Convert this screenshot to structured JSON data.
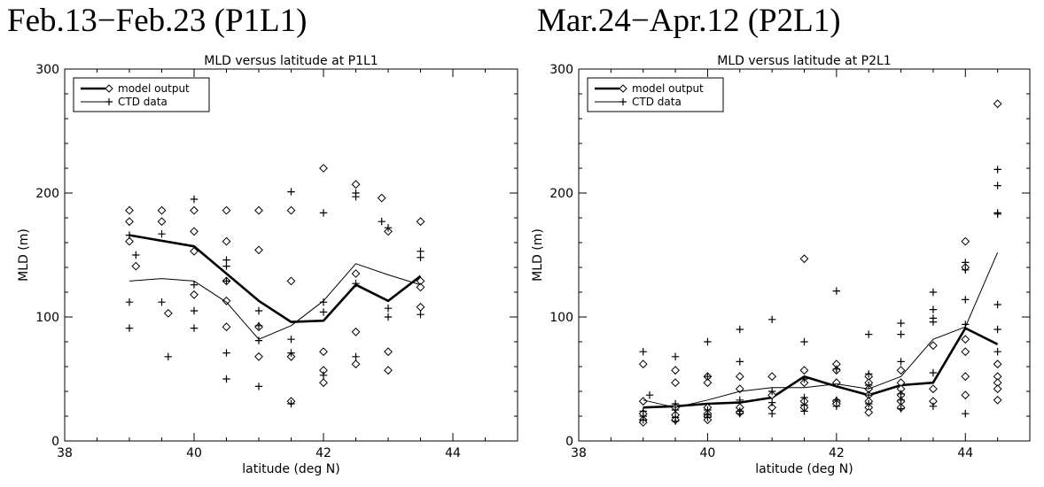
{
  "chart_data": [
    {
      "type": "scatter",
      "header": "Feb.13−Feb.23 (P1L1)",
      "title": "MLD versus latitude at P1L1",
      "xlabel": "latitude (deg N)",
      "ylabel": "MLD (m)",
      "xlim": [
        38,
        45
      ],
      "ylim": [
        0,
        300
      ],
      "xticks": [
        38,
        40,
        42,
        44
      ],
      "yticks": [
        0,
        100,
        200,
        300
      ],
      "grid": false,
      "legend_position": "top-left",
      "series": [
        {
          "name": "model output",
          "kind": "line",
          "marker": "diamond",
          "line_weight": "thick",
          "line": [
            [
              39.0,
              166
            ],
            [
              40.0,
              157
            ],
            [
              41.0,
              113
            ],
            [
              41.5,
              96
            ],
            [
              42.0,
              97
            ],
            [
              42.5,
              126
            ],
            [
              43.0,
              113
            ],
            [
              43.5,
              133
            ]
          ],
          "points": [
            [
              39.0,
              186
            ],
            [
              39.0,
              177
            ],
            [
              39.0,
              161
            ],
            [
              39.1,
              141
            ],
            [
              39.5,
              186
            ],
            [
              39.5,
              177
            ],
            [
              39.6,
              103
            ],
            [
              40.0,
              186
            ],
            [
              40.0,
              169
            ],
            [
              40.0,
              153
            ],
            [
              40.0,
              118
            ],
            [
              40.5,
              186
            ],
            [
              40.5,
              161
            ],
            [
              40.5,
              129
            ],
            [
              40.5,
              113
            ],
            [
              40.5,
              92
            ],
            [
              41.0,
              186
            ],
            [
              41.0,
              154
            ],
            [
              41.0,
              92
            ],
            [
              41.0,
              68
            ],
            [
              41.5,
              186
            ],
            [
              41.5,
              129
            ],
            [
              41.5,
              68
            ],
            [
              41.5,
              32
            ],
            [
              42.0,
              220
            ],
            [
              42.0,
              72
            ],
            [
              42.0,
              57
            ],
            [
              42.0,
              47
            ],
            [
              42.5,
              207
            ],
            [
              42.5,
              135
            ],
            [
              42.5,
              88
            ],
            [
              42.5,
              62
            ],
            [
              42.9,
              196
            ],
            [
              43.0,
              169
            ],
            [
              43.0,
              72
            ],
            [
              43.0,
              57
            ],
            [
              43.5,
              177
            ],
            [
              43.5,
              129
            ],
            [
              43.5,
              124
            ],
            [
              43.5,
              108
            ]
          ]
        },
        {
          "name": "CTD data",
          "kind": "line",
          "marker": "plus",
          "line_weight": "thin",
          "line": [
            [
              39.0,
              129
            ],
            [
              39.5,
              131
            ],
            [
              40.0,
              129
            ],
            [
              40.5,
              112
            ],
            [
              41.0,
              82
            ],
            [
              41.5,
              93
            ],
            [
              42.0,
              113
            ],
            [
              42.5,
              143
            ],
            [
              43.0,
              134
            ],
            [
              43.5,
              126
            ]
          ],
          "points": [
            [
              39.0,
              166
            ],
            [
              39.1,
              150
            ],
            [
              39.0,
              112
            ],
            [
              39.0,
              91
            ],
            [
              39.5,
              167
            ],
            [
              39.5,
              112
            ],
            [
              39.6,
              68
            ],
            [
              40.0,
              195
            ],
            [
              40.0,
              126
            ],
            [
              40.0,
              105
            ],
            [
              40.0,
              91
            ],
            [
              40.5,
              146
            ],
            [
              40.5,
              141
            ],
            [
              40.5,
              129
            ],
            [
              40.5,
              71
            ],
            [
              40.5,
              50
            ],
            [
              41.0,
              105
            ],
            [
              41.0,
              93
            ],
            [
              41.0,
              81
            ],
            [
              41.0,
              44
            ],
            [
              41.5,
              201
            ],
            [
              41.5,
              82
            ],
            [
              41.5,
              71
            ],
            [
              41.5,
              30
            ],
            [
              42.0,
              184
            ],
            [
              42.0,
              112
            ],
            [
              42.0,
              104
            ],
            [
              42.0,
              53
            ],
            [
              42.5,
              200
            ],
            [
              42.5,
              197
            ],
            [
              42.5,
              127
            ],
            [
              42.5,
              68
            ],
            [
              42.9,
              177
            ],
            [
              43.0,
              172
            ],
            [
              43.0,
              107
            ],
            [
              43.0,
              100
            ],
            [
              43.5,
              153
            ],
            [
              43.5,
              148
            ],
            [
              43.5,
              102
            ]
          ]
        }
      ]
    },
    {
      "type": "scatter",
      "header": "Mar.24−Apr.12 (P2L1)",
      "title": "MLD versus latitude at P2L1",
      "xlabel": "latitude (deg N)",
      "ylabel": "MLD (m)",
      "xlim": [
        38,
        45
      ],
      "ylim": [
        0,
        300
      ],
      "xticks": [
        38,
        40,
        42,
        44
      ],
      "yticks": [
        0,
        100,
        200,
        300
      ],
      "grid": false,
      "legend_position": "top-left",
      "series": [
        {
          "name": "model output",
          "kind": "line",
          "marker": "diamond",
          "line_weight": "thick",
          "line": [
            [
              39.0,
              27
            ],
            [
              39.5,
              28
            ],
            [
              40.0,
              30
            ],
            [
              40.5,
              31
            ],
            [
              41.0,
              35
            ],
            [
              41.5,
              52
            ],
            [
              42.0,
              44
            ],
            [
              42.5,
              37
            ],
            [
              43.0,
              45
            ],
            [
              43.5,
              47
            ],
            [
              44.0,
              91
            ],
            [
              44.5,
              78
            ]
          ],
          "points": [
            [
              39.0,
              62
            ],
            [
              39.0,
              32
            ],
            [
              39.0,
              22
            ],
            [
              39.0,
              17
            ],
            [
              39.0,
              15
            ],
            [
              39.5,
              57
            ],
            [
              39.5,
              47
            ],
            [
              39.5,
              27
            ],
            [
              39.5,
              21
            ],
            [
              39.5,
              17
            ],
            [
              40.0,
              52
            ],
            [
              40.0,
              47
            ],
            [
              40.0,
              27
            ],
            [
              40.0,
              22
            ],
            [
              40.0,
              20
            ],
            [
              40.0,
              17
            ],
            [
              40.5,
              52
            ],
            [
              40.5,
              42
            ],
            [
              40.5,
              27
            ],
            [
              40.5,
              23
            ],
            [
              41.0,
              52
            ],
            [
              41.0,
              37
            ],
            [
              41.0,
              27
            ],
            [
              41.5,
              147
            ],
            [
              41.5,
              57
            ],
            [
              41.5,
              47
            ],
            [
              41.5,
              32
            ],
            [
              41.5,
              27
            ],
            [
              42.0,
              62
            ],
            [
              42.0,
              57
            ],
            [
              42.0,
              47
            ],
            [
              42.0,
              32
            ],
            [
              42.0,
              30
            ],
            [
              42.5,
              52
            ],
            [
              42.5,
              47
            ],
            [
              42.5,
              42
            ],
            [
              42.5,
              37
            ],
            [
              42.5,
              32
            ],
            [
              42.5,
              27
            ],
            [
              42.5,
              23
            ],
            [
              43.0,
              57
            ],
            [
              43.0,
              47
            ],
            [
              43.0,
              42
            ],
            [
              43.0,
              37
            ],
            [
              43.0,
              32
            ],
            [
              43.0,
              27
            ],
            [
              43.5,
              77
            ],
            [
              43.5,
              42
            ],
            [
              43.5,
              32
            ],
            [
              44.0,
              161
            ],
            [
              44.0,
              140
            ],
            [
              44.0,
              82
            ],
            [
              44.0,
              72
            ],
            [
              44.0,
              52
            ],
            [
              44.0,
              37
            ],
            [
              44.5,
              272
            ],
            [
              44.5,
              62
            ],
            [
              44.5,
              52
            ],
            [
              44.5,
              47
            ],
            [
              44.5,
              42
            ],
            [
              44.5,
              33
            ]
          ]
        },
        {
          "name": "CTD data",
          "kind": "line",
          "marker": "plus",
          "line_weight": "thin",
          "line": [
            [
              39.0,
              33
            ],
            [
              39.5,
              27
            ],
            [
              40.0,
              33
            ],
            [
              40.5,
              40
            ],
            [
              41.0,
              43
            ],
            [
              41.5,
              43
            ],
            [
              42.0,
              46
            ],
            [
              42.5,
              42
            ],
            [
              43.0,
              52
            ],
            [
              43.5,
              82
            ],
            [
              44.0,
              92
            ],
            [
              44.5,
              152
            ]
          ],
          "points": [
            [
              39.0,
              72
            ],
            [
              39.1,
              37
            ],
            [
              39.0,
              24
            ],
            [
              39.0,
              20
            ],
            [
              39.0,
              17
            ],
            [
              39.5,
              68
            ],
            [
              39.5,
              30
            ],
            [
              39.5,
              25
            ],
            [
              39.5,
              19
            ],
            [
              39.5,
              16
            ],
            [
              40.0,
              80
            ],
            [
              40.0,
              52
            ],
            [
              40.0,
              25
            ],
            [
              40.0,
              21
            ],
            [
              40.0,
              19
            ],
            [
              40.5,
              90
            ],
            [
              40.5,
              64
            ],
            [
              40.5,
              33
            ],
            [
              40.5,
              24
            ],
            [
              40.5,
              22
            ],
            [
              41.0,
              98
            ],
            [
              41.0,
              40
            ],
            [
              41.0,
              31
            ],
            [
              41.0,
              22
            ],
            [
              41.5,
              80
            ],
            [
              41.5,
              50
            ],
            [
              41.5,
              35
            ],
            [
              41.5,
              29
            ],
            [
              41.5,
              24
            ],
            [
              42.0,
              121
            ],
            [
              42.0,
              58
            ],
            [
              42.0,
              33
            ],
            [
              42.0,
              28
            ],
            [
              42.5,
              86
            ],
            [
              42.5,
              54
            ],
            [
              42.5,
              45
            ],
            [
              42.5,
              37
            ],
            [
              42.5,
              30
            ],
            [
              43.0,
              95
            ],
            [
              43.0,
              86
            ],
            [
              43.0,
              64
            ],
            [
              43.0,
              38
            ],
            [
              43.0,
              33
            ],
            [
              43.0,
              26
            ],
            [
              43.5,
              120
            ],
            [
              43.5,
              106
            ],
            [
              43.5,
              99
            ],
            [
              43.5,
              96
            ],
            [
              43.5,
              55
            ],
            [
              43.5,
              28
            ],
            [
              44.0,
              144
            ],
            [
              44.0,
              138
            ],
            [
              44.0,
              114
            ],
            [
              44.0,
              94
            ],
            [
              44.0,
              22
            ],
            [
              44.5,
              219
            ],
            [
              44.5,
              206
            ],
            [
              44.5,
              184
            ],
            [
              44.5,
              183
            ],
            [
              44.5,
              110
            ],
            [
              44.5,
              90
            ],
            [
              44.5,
              72
            ]
          ]
        }
      ]
    }
  ]
}
